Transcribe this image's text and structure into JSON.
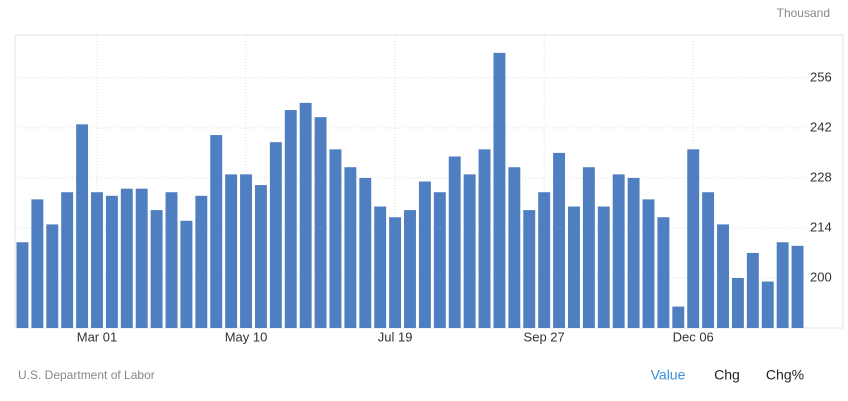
{
  "chart_data": {
    "type": "bar",
    "unit": "Thousand",
    "categories": [
      null,
      null,
      null,
      null,
      null,
      "Mar 01",
      null,
      null,
      null,
      null,
      null,
      null,
      null,
      null,
      null,
      "May 10",
      null,
      null,
      null,
      null,
      null,
      null,
      null,
      null,
      null,
      "Jul 19",
      null,
      null,
      null,
      null,
      null,
      null,
      null,
      null,
      null,
      "Sep 27",
      null,
      null,
      null,
      null,
      null,
      null,
      null,
      null,
      null,
      "Dec 06",
      null,
      null,
      null,
      null,
      null,
      null,
      null
    ],
    "values": [
      210,
      222,
      215,
      224,
      243,
      224,
      223,
      225,
      225,
      219,
      224,
      216,
      223,
      240,
      229,
      229,
      226,
      238,
      247,
      249,
      245,
      236,
      231,
      228,
      220,
      217,
      219,
      227,
      224,
      234,
      229,
      236,
      263,
      231,
      219,
      224,
      235,
      220,
      231,
      220,
      229,
      228,
      222,
      217,
      192,
      236,
      224,
      215,
      200,
      207,
      199,
      210,
      209
    ],
    "color": "#4f7fc0",
    "ylim": [
      186,
      268
    ],
    "yticks": [
      200,
      214,
      228,
      242,
      256
    ],
    "grid": true,
    "source": "U.S. Department of Labor",
    "buttons": [
      "Value",
      "Chg",
      "Chg%"
    ]
  }
}
